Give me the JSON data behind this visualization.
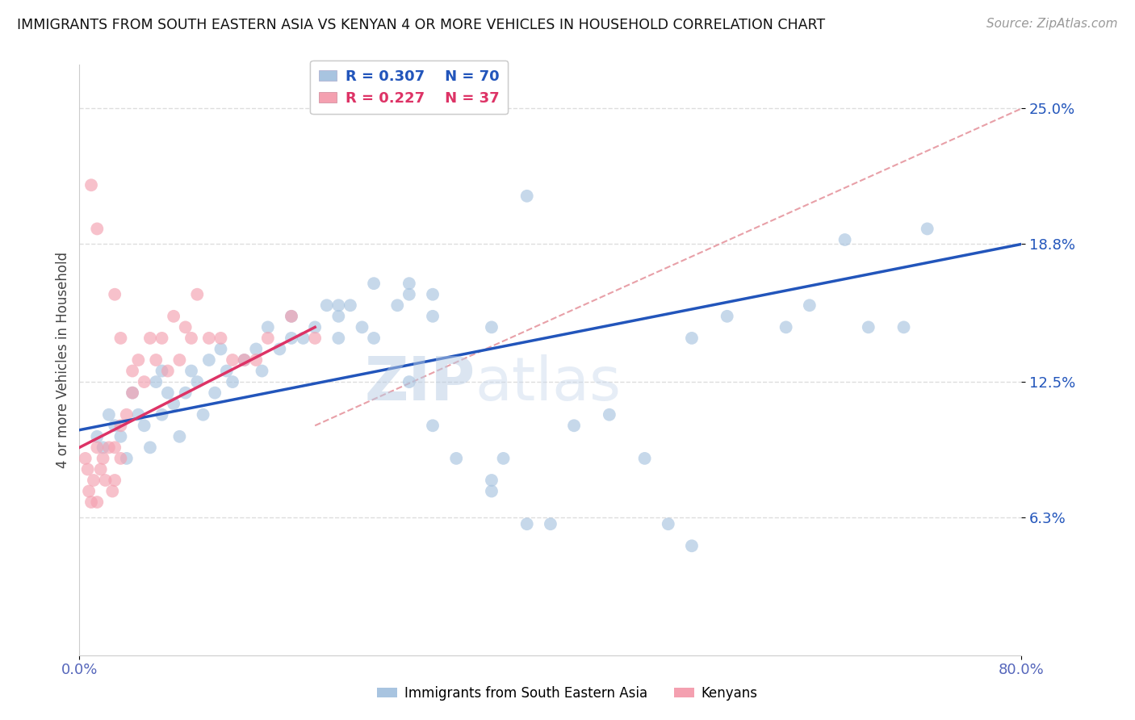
{
  "title": "IMMIGRANTS FROM SOUTH EASTERN ASIA VS KENYAN 4 OR MORE VEHICLES IN HOUSEHOLD CORRELATION CHART",
  "source": "Source: ZipAtlas.com",
  "ylabel": "4 or more Vehicles in Household",
  "y_tick_values": [
    6.3,
    12.5,
    18.8,
    25.0
  ],
  "xlim": [
    0,
    80
  ],
  "ylim": [
    0,
    27
  ],
  "legend_blue_r": "R = 0.307",
  "legend_blue_n": "N = 70",
  "legend_pink_r": "R = 0.227",
  "legend_pink_n": "N = 37",
  "blue_scatter_x": [
    1.5,
    2.0,
    2.5,
    3.0,
    3.5,
    4.0,
    4.5,
    5.0,
    5.5,
    6.0,
    6.5,
    7.0,
    7.0,
    7.5,
    8.0,
    8.5,
    9.0,
    9.5,
    10.0,
    10.5,
    11.0,
    11.5,
    12.0,
    12.5,
    13.0,
    14.0,
    15.0,
    15.5,
    16.0,
    17.0,
    18.0,
    19.0,
    20.0,
    21.0,
    22.0,
    23.0,
    24.0,
    25.0,
    27.0,
    28.0,
    30.0,
    32.0,
    35.0,
    36.0,
    38.0,
    22.0,
    28.0,
    30.0,
    35.0,
    40.0,
    42.0,
    45.0,
    48.0,
    50.0,
    52.0,
    38.0,
    30.0,
    25.0,
    55.0,
    60.0,
    62.0,
    65.0,
    67.0,
    70.0,
    72.0,
    35.0,
    28.0,
    22.0,
    52.0,
    18.0
  ],
  "blue_scatter_y": [
    10.0,
    9.5,
    11.0,
    10.5,
    10.0,
    9.0,
    12.0,
    11.0,
    10.5,
    9.5,
    12.5,
    11.0,
    13.0,
    12.0,
    11.5,
    10.0,
    12.0,
    13.0,
    12.5,
    11.0,
    13.5,
    12.0,
    14.0,
    13.0,
    12.5,
    13.5,
    14.0,
    13.0,
    15.0,
    14.0,
    15.5,
    14.5,
    15.0,
    16.0,
    15.5,
    16.0,
    15.0,
    17.0,
    16.0,
    16.5,
    10.5,
    9.0,
    8.0,
    9.0,
    6.0,
    14.5,
    17.0,
    16.5,
    15.0,
    6.0,
    10.5,
    11.0,
    9.0,
    6.0,
    5.0,
    21.0,
    15.5,
    14.5,
    15.5,
    15.0,
    16.0,
    19.0,
    15.0,
    15.0,
    19.5,
    7.5,
    12.5,
    16.0,
    14.5,
    14.5
  ],
  "pink_scatter_x": [
    0.5,
    0.7,
    0.8,
    1.0,
    1.2,
    1.5,
    1.5,
    1.8,
    2.0,
    2.2,
    2.5,
    2.8,
    3.0,
    3.0,
    3.5,
    3.5,
    4.0,
    4.5,
    5.0,
    5.5,
    6.0,
    6.5,
    7.0,
    7.5,
    8.0,
    8.5,
    9.0,
    9.5,
    10.0,
    11.0,
    12.0,
    13.0,
    14.0,
    15.0,
    16.0,
    18.0,
    20.0
  ],
  "pink_scatter_y": [
    9.0,
    8.5,
    7.5,
    7.0,
    8.0,
    9.5,
    7.0,
    8.5,
    9.0,
    8.0,
    9.5,
    7.5,
    9.5,
    8.0,
    10.5,
    9.0,
    11.0,
    12.0,
    13.5,
    12.5,
    14.5,
    13.5,
    14.5,
    13.0,
    15.5,
    13.5,
    15.0,
    14.5,
    16.5,
    14.5,
    14.5,
    13.5,
    13.5,
    13.5,
    14.5,
    15.5,
    14.5
  ],
  "pink_outlier_x": [
    1.0,
    1.5,
    3.0,
    3.5,
    4.5
  ],
  "pink_outlier_y": [
    21.5,
    19.5,
    16.5,
    14.5,
    13.0
  ],
  "blue_color": "#a8c4e0",
  "pink_color": "#f4a0b0",
  "blue_line_color": "#2255bb",
  "pink_line_color": "#dd3366",
  "diagonal_color": "#e8a0a8",
  "grid_color": "#dddddd",
  "label_color": "#5566bb",
  "tick_color": "#5566bb",
  "background_color": "#ffffff",
  "blue_line_start_x": 0,
  "blue_line_start_y": 10.3,
  "blue_line_end_x": 80,
  "blue_line_end_y": 18.8,
  "pink_line_start_x": 0,
  "pink_line_start_y": 9.5,
  "pink_line_end_x": 20,
  "pink_line_end_y": 15.0,
  "diag_start_x": 20,
  "diag_start_y": 10.5,
  "diag_end_x": 80,
  "diag_end_y": 25.0
}
